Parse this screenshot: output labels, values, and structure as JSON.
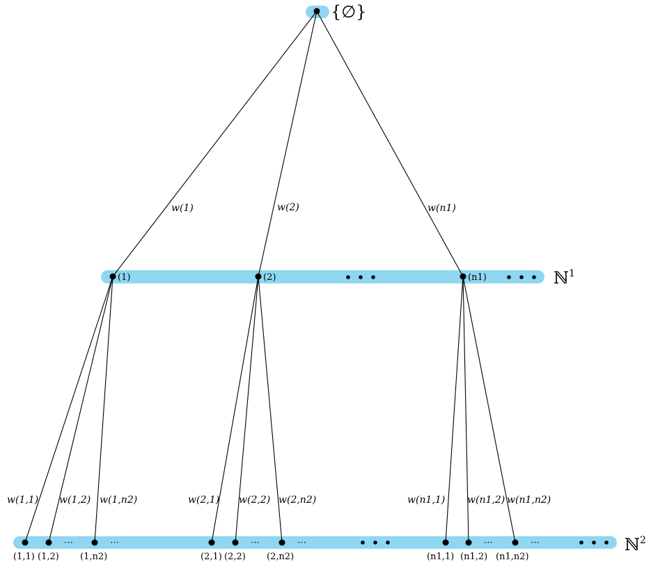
{
  "root": {
    "label": "{∅}"
  },
  "levels": [
    {
      "label": "ℕ",
      "superscript": "1"
    },
    {
      "label": "ℕ",
      "superscript": "2"
    }
  ],
  "level1_nodes": [
    {
      "label": "(1)",
      "edge_label": "w(1)"
    },
    {
      "label": "(2)",
      "edge_label": "w(2)"
    },
    {
      "label": "(n1)",
      "edge_label": "w(n1)"
    }
  ],
  "level2_nodes": [
    {
      "label": "(1,1)",
      "edge_label": "w(1,1)"
    },
    {
      "label": "(1,2)",
      "edge_label": "w(1,2)"
    },
    {
      "label": "(1,n2)",
      "edge_label": "w(1,n2)"
    },
    {
      "label": "(2,1)",
      "edge_label": "w(2,1)"
    },
    {
      "label": "(2,2)",
      "edge_label": "w(2,2)"
    },
    {
      "label": "(2,n2)",
      "edge_label": "w(2,n2)"
    },
    {
      "label": "(n1,1)",
      "edge_label": "w(n1,1)"
    },
    {
      "label": "(n1,2)",
      "edge_label": "w(n1,2)"
    },
    {
      "label": "(n1,n2)",
      "edge_label": "w(n1,n2)"
    }
  ],
  "small_ellipsis": "⋯"
}
